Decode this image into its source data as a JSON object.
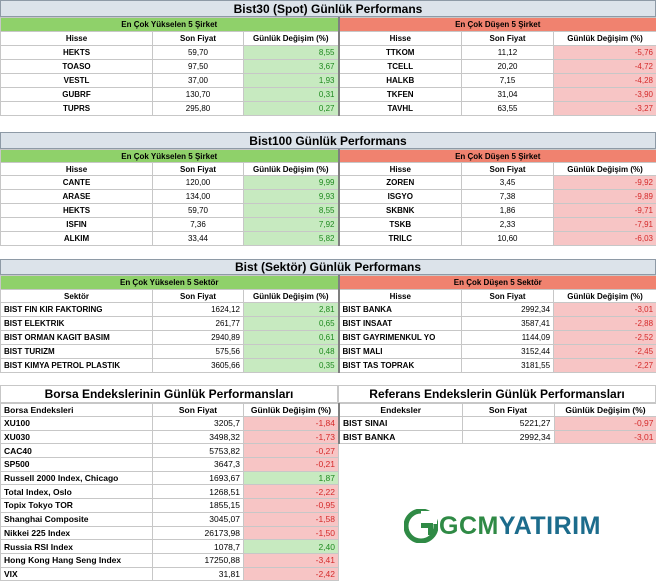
{
  "section1": {
    "title": "Bist30 (Spot) Günlük Performans",
    "gainers_header": "En Çok Yükselen 5 Şirket",
    "losers_header": "En Çok Düşen 5 Şirket",
    "col_hisse": "Hisse",
    "col_price": "Son Fiyat",
    "col_change": "Günlük Değişim (%)",
    "gainers": [
      {
        "name": "HEKTS",
        "price": "59,70",
        "change": "8,55"
      },
      {
        "name": "TOASO",
        "price": "97,50",
        "change": "3,67"
      },
      {
        "name": "VESTL",
        "price": "37,00",
        "change": "1,93"
      },
      {
        "name": "GUBRF",
        "price": "130,70",
        "change": "0,31"
      },
      {
        "name": "TUPRS",
        "price": "295,80",
        "change": "0,27"
      }
    ],
    "losers": [
      {
        "name": "TTKOM",
        "price": "11,12",
        "change": "-5,76"
      },
      {
        "name": "TCELL",
        "price": "20,20",
        "change": "-4,72"
      },
      {
        "name": "HALKB",
        "price": "7,15",
        "change": "-4,28"
      },
      {
        "name": "TKFEN",
        "price": "31,04",
        "change": "-3,90"
      },
      {
        "name": "TAVHL",
        "price": "63,55",
        "change": "-3,27"
      }
    ]
  },
  "section2": {
    "title": "Bist100 Günlük Performans",
    "gainers_header": "En Çok Yükselen 5 Şirket",
    "losers_header": "En Çok Düşen 5 Şirket",
    "col_hisse": "Hisse",
    "col_price": "Son Fiyat",
    "col_change": "Günlük Değişim (%)",
    "gainers": [
      {
        "name": "CANTE",
        "price": "120,00",
        "change": "9,99"
      },
      {
        "name": "ARASE",
        "price": "134,00",
        "change": "9,93"
      },
      {
        "name": "HEKTS",
        "price": "59,70",
        "change": "8,55"
      },
      {
        "name": "ISFIN",
        "price": "7,36",
        "change": "7,92"
      },
      {
        "name": "ALKIM",
        "price": "33,44",
        "change": "5,82"
      }
    ],
    "losers": [
      {
        "name": "ZOREN",
        "price": "3,45",
        "change": "-9,92"
      },
      {
        "name": "ISGYO",
        "price": "7,38",
        "change": "-9,89"
      },
      {
        "name": "SKBNK",
        "price": "1,86",
        "change": "-9,71"
      },
      {
        "name": "TSKB",
        "price": "2,33",
        "change": "-7,91"
      },
      {
        "name": "TRILC",
        "price": "10,60",
        "change": "-6,03"
      }
    ]
  },
  "section3": {
    "title": "Bist (Sektör) Günlük Performans",
    "gainers_header": "En Çok Yükselen 5 Sektör",
    "losers_header": "En Çok Düşen 5 Sektör",
    "col_sektor": "Sektör",
    "col_hisse": "Hisse",
    "col_price": "Son Fiyat",
    "col_change": "Günlük Değişim (%)",
    "gainers": [
      {
        "name": "BIST FIN KIR FAKTORING",
        "price": "1624,12",
        "change": "2,81"
      },
      {
        "name": "BIST ELEKTRIK",
        "price": "261,77",
        "change": "0,65"
      },
      {
        "name": "BIST ORMAN KAGIT BASIM",
        "price": "2940,89",
        "change": "0,61"
      },
      {
        "name": "BIST TURIZM",
        "price": "575,56",
        "change": "0,48"
      },
      {
        "name": "BIST KIMYA PETROL PLASTIK",
        "price": "3605,66",
        "change": "0,35"
      }
    ],
    "losers": [
      {
        "name": "BIST BANKA",
        "price": "2992,34",
        "change": "-3,01"
      },
      {
        "name": "BIST INSAAT",
        "price": "3587,41",
        "change": "-2,88"
      },
      {
        "name": "BIST GAYRIMENKUL YO",
        "price": "1144,09",
        "change": "-2,52"
      },
      {
        "name": "BIST MALI",
        "price": "3152,44",
        "change": "-2,45"
      },
      {
        "name": "BIST TAS TOPRAK",
        "price": "3181,55",
        "change": "-2,27"
      }
    ]
  },
  "section4": {
    "left_title": "Borsa Endekslerinin Günlük Performansları",
    "right_title": "Referans Endekslerin  Günlük Performansları",
    "left_col_name": "Borsa Endeksleri",
    "right_col_name": "Endeksler",
    "col_price": "Son Fiyat",
    "col_change": "Günlük Değişim (%)",
    "indices": [
      {
        "name": "XU100",
        "price": "3205,7",
        "change": "-1,84"
      },
      {
        "name": "XU030",
        "price": "3498,32",
        "change": "-1,73"
      },
      {
        "name": "CAC40",
        "price": "5753,82",
        "change": "-0,27"
      },
      {
        "name": "SP500",
        "price": "3647,3",
        "change": "-0,21"
      },
      {
        "name": "Russell 2000 Index, Chicago",
        "price": "1693,67",
        "change": "1,87"
      },
      {
        "name": "Total Index, Oslo",
        "price": "1268,51",
        "change": "-2,22"
      },
      {
        "name": "Topix Tokyo TOR",
        "price": "1855,15",
        "change": "-0,95"
      },
      {
        "name": "Shanghai Composite",
        "price": "3045,07",
        "change": "-1,58"
      },
      {
        "name": "Nikkei 225 Index",
        "price": "26173,98",
        "change": "-1,50"
      },
      {
        "name": "Russia RSI Index",
        "price": "1078,7",
        "change": "2,40"
      },
      {
        "name": "Hong Kong Hang Seng Index",
        "price": "17250,88",
        "change": "-3,41"
      },
      {
        "name": "VIX",
        "price": "31,81",
        "change": "-2,42"
      }
    ],
    "references": [
      {
        "name": "BIST SINAI",
        "price": "5221,27",
        "change": "-0,97"
      },
      {
        "name": "BIST BANKA",
        "price": "2992,34",
        "change": "-3,01"
      }
    ]
  },
  "logo": {
    "text_part1": "GCM",
    "text_part2": "YATIRIM",
    "icon": "gcm-logo-icon",
    "color_green": "#2f8a45",
    "color_blue": "#1c6c8c"
  },
  "colors": {
    "positive_bg": "#c7eac0",
    "negative_bg": "#f7c5c5",
    "gainers_header_bg": "#8fd16a",
    "losers_header_bg": "#f0826f",
    "title_bg": "#dce3ea"
  }
}
